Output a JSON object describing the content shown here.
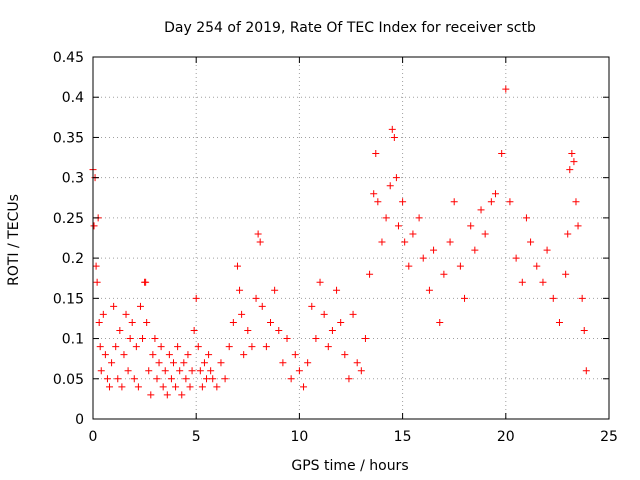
{
  "chart_data": {
    "type": "scatter",
    "title": "Day 254 of 2019, Rate Of TEC Index for receiver sctb",
    "xlabel": "GPS time / hours",
    "ylabel": "ROTI / TECUs",
    "xlim": [
      0,
      25
    ],
    "ylim": [
      0,
      0.45
    ],
    "xticks": [
      0,
      5,
      10,
      15,
      20,
      25
    ],
    "yticks": [
      0,
      0.05,
      0.1,
      0.15,
      0.2,
      0.25,
      0.3,
      0.35,
      0.4,
      0.45
    ],
    "xtick_labels": [
      "0",
      "5",
      "10",
      "15",
      "20",
      "25"
    ],
    "ytick_labels": [
      "0",
      "0.05",
      "0.1",
      "0.15",
      "0.2",
      "0.25",
      "0.3",
      "0.35",
      "0.4",
      "0.45"
    ],
    "grid": true,
    "marker": "+",
    "color": "#ff0000",
    "series": [
      {
        "name": "ROTI",
        "points": [
          [
            0.0,
            0.31
          ],
          [
            0.05,
            0.24
          ],
          [
            0.1,
            0.3
          ],
          [
            0.15,
            0.19
          ],
          [
            0.2,
            0.17
          ],
          [
            0.25,
            0.25
          ],
          [
            0.3,
            0.12
          ],
          [
            0.35,
            0.09
          ],
          [
            0.4,
            0.06
          ],
          [
            0.5,
            0.13
          ],
          [
            0.6,
            0.08
          ],
          [
            0.7,
            0.05
          ],
          [
            0.8,
            0.04
          ],
          [
            0.9,
            0.07
          ],
          [
            1.0,
            0.14
          ],
          [
            1.1,
            0.09
          ],
          [
            1.2,
            0.05
          ],
          [
            1.3,
            0.11
          ],
          [
            1.4,
            0.04
          ],
          [
            1.5,
            0.08
          ],
          [
            1.6,
            0.13
          ],
          [
            1.7,
            0.06
          ],
          [
            1.8,
            0.1
          ],
          [
            1.9,
            0.12
          ],
          [
            2.0,
            0.05
          ],
          [
            2.1,
            0.09
          ],
          [
            2.2,
            0.04
          ],
          [
            2.3,
            0.14
          ],
          [
            2.4,
            0.1
          ],
          [
            2.5,
            0.17
          ],
          [
            2.55,
            0.17
          ],
          [
            2.6,
            0.12
          ],
          [
            2.7,
            0.06
          ],
          [
            2.8,
            0.03
          ],
          [
            2.9,
            0.08
          ],
          [
            3.0,
            0.1
          ],
          [
            3.1,
            0.05
          ],
          [
            3.2,
            0.07
          ],
          [
            3.3,
            0.09
          ],
          [
            3.4,
            0.04
          ],
          [
            3.5,
            0.06
          ],
          [
            3.6,
            0.03
          ],
          [
            3.7,
            0.08
          ],
          [
            3.8,
            0.05
          ],
          [
            3.9,
            0.07
          ],
          [
            4.0,
            0.04
          ],
          [
            4.1,
            0.09
          ],
          [
            4.2,
            0.06
          ],
          [
            4.3,
            0.03
          ],
          [
            4.4,
            0.07
          ],
          [
            4.5,
            0.05
          ],
          [
            4.6,
            0.08
          ],
          [
            4.7,
            0.04
          ],
          [
            4.8,
            0.06
          ],
          [
            4.9,
            0.11
          ],
          [
            5.0,
            0.15
          ],
          [
            5.1,
            0.09
          ],
          [
            5.2,
            0.06
          ],
          [
            5.3,
            0.04
          ],
          [
            5.4,
            0.07
          ],
          [
            5.5,
            0.05
          ],
          [
            5.6,
            0.08
          ],
          [
            5.7,
            0.06
          ],
          [
            5.8,
            0.05
          ],
          [
            6.0,
            0.04
          ],
          [
            6.2,
            0.07
          ],
          [
            6.4,
            0.05
          ],
          [
            6.6,
            0.09
          ],
          [
            6.8,
            0.12
          ],
          [
            7.0,
            0.19
          ],
          [
            7.1,
            0.16
          ],
          [
            7.2,
            0.13
          ],
          [
            7.3,
            0.08
          ],
          [
            7.5,
            0.11
          ],
          [
            7.7,
            0.09
          ],
          [
            7.9,
            0.15
          ],
          [
            8.0,
            0.23
          ],
          [
            8.1,
            0.22
          ],
          [
            8.2,
            0.14
          ],
          [
            8.4,
            0.09
          ],
          [
            8.6,
            0.12
          ],
          [
            8.8,
            0.16
          ],
          [
            9.0,
            0.11
          ],
          [
            9.2,
            0.07
          ],
          [
            9.4,
            0.1
          ],
          [
            9.6,
            0.05
          ],
          [
            9.8,
            0.08
          ],
          [
            10.0,
            0.06
          ],
          [
            10.2,
            0.04
          ],
          [
            10.4,
            0.07
          ],
          [
            10.6,
            0.14
          ],
          [
            10.8,
            0.1
          ],
          [
            11.0,
            0.17
          ],
          [
            11.2,
            0.13
          ],
          [
            11.4,
            0.09
          ],
          [
            11.6,
            0.11
          ],
          [
            11.8,
            0.16
          ],
          [
            12.0,
            0.12
          ],
          [
            12.2,
            0.08
          ],
          [
            12.4,
            0.05
          ],
          [
            12.6,
            0.13
          ],
          [
            12.8,
            0.07
          ],
          [
            13.0,
            0.06
          ],
          [
            13.2,
            0.1
          ],
          [
            13.4,
            0.18
          ],
          [
            13.6,
            0.28
          ],
          [
            13.7,
            0.33
          ],
          [
            13.8,
            0.27
          ],
          [
            14.0,
            0.22
          ],
          [
            14.2,
            0.25
          ],
          [
            14.4,
            0.29
          ],
          [
            14.5,
            0.36
          ],
          [
            14.6,
            0.35
          ],
          [
            14.7,
            0.3
          ],
          [
            14.8,
            0.24
          ],
          [
            15.0,
            0.27
          ],
          [
            15.1,
            0.22
          ],
          [
            15.3,
            0.19
          ],
          [
            15.5,
            0.23
          ],
          [
            15.8,
            0.25
          ],
          [
            16.0,
            0.2
          ],
          [
            16.3,
            0.16
          ],
          [
            16.5,
            0.21
          ],
          [
            16.8,
            0.12
          ],
          [
            17.0,
            0.18
          ],
          [
            17.3,
            0.22
          ],
          [
            17.5,
            0.27
          ],
          [
            17.8,
            0.19
          ],
          [
            18.0,
            0.15
          ],
          [
            18.3,
            0.24
          ],
          [
            18.5,
            0.21
          ],
          [
            18.8,
            0.26
          ],
          [
            19.0,
            0.23
          ],
          [
            19.3,
            0.27
          ],
          [
            19.5,
            0.28
          ],
          [
            19.8,
            0.33
          ],
          [
            20.0,
            0.41
          ],
          [
            20.2,
            0.27
          ],
          [
            20.5,
            0.2
          ],
          [
            20.8,
            0.17
          ],
          [
            21.0,
            0.25
          ],
          [
            21.2,
            0.22
          ],
          [
            21.5,
            0.19
          ],
          [
            21.8,
            0.17
          ],
          [
            22.0,
            0.21
          ],
          [
            22.3,
            0.15
          ],
          [
            22.6,
            0.12
          ],
          [
            22.9,
            0.18
          ],
          [
            23.0,
            0.23
          ],
          [
            23.1,
            0.31
          ],
          [
            23.2,
            0.33
          ],
          [
            23.3,
            0.32
          ],
          [
            23.4,
            0.27
          ],
          [
            23.5,
            0.24
          ],
          [
            23.7,
            0.15
          ],
          [
            23.8,
            0.11
          ],
          [
            23.9,
            0.06
          ]
        ]
      }
    ]
  }
}
